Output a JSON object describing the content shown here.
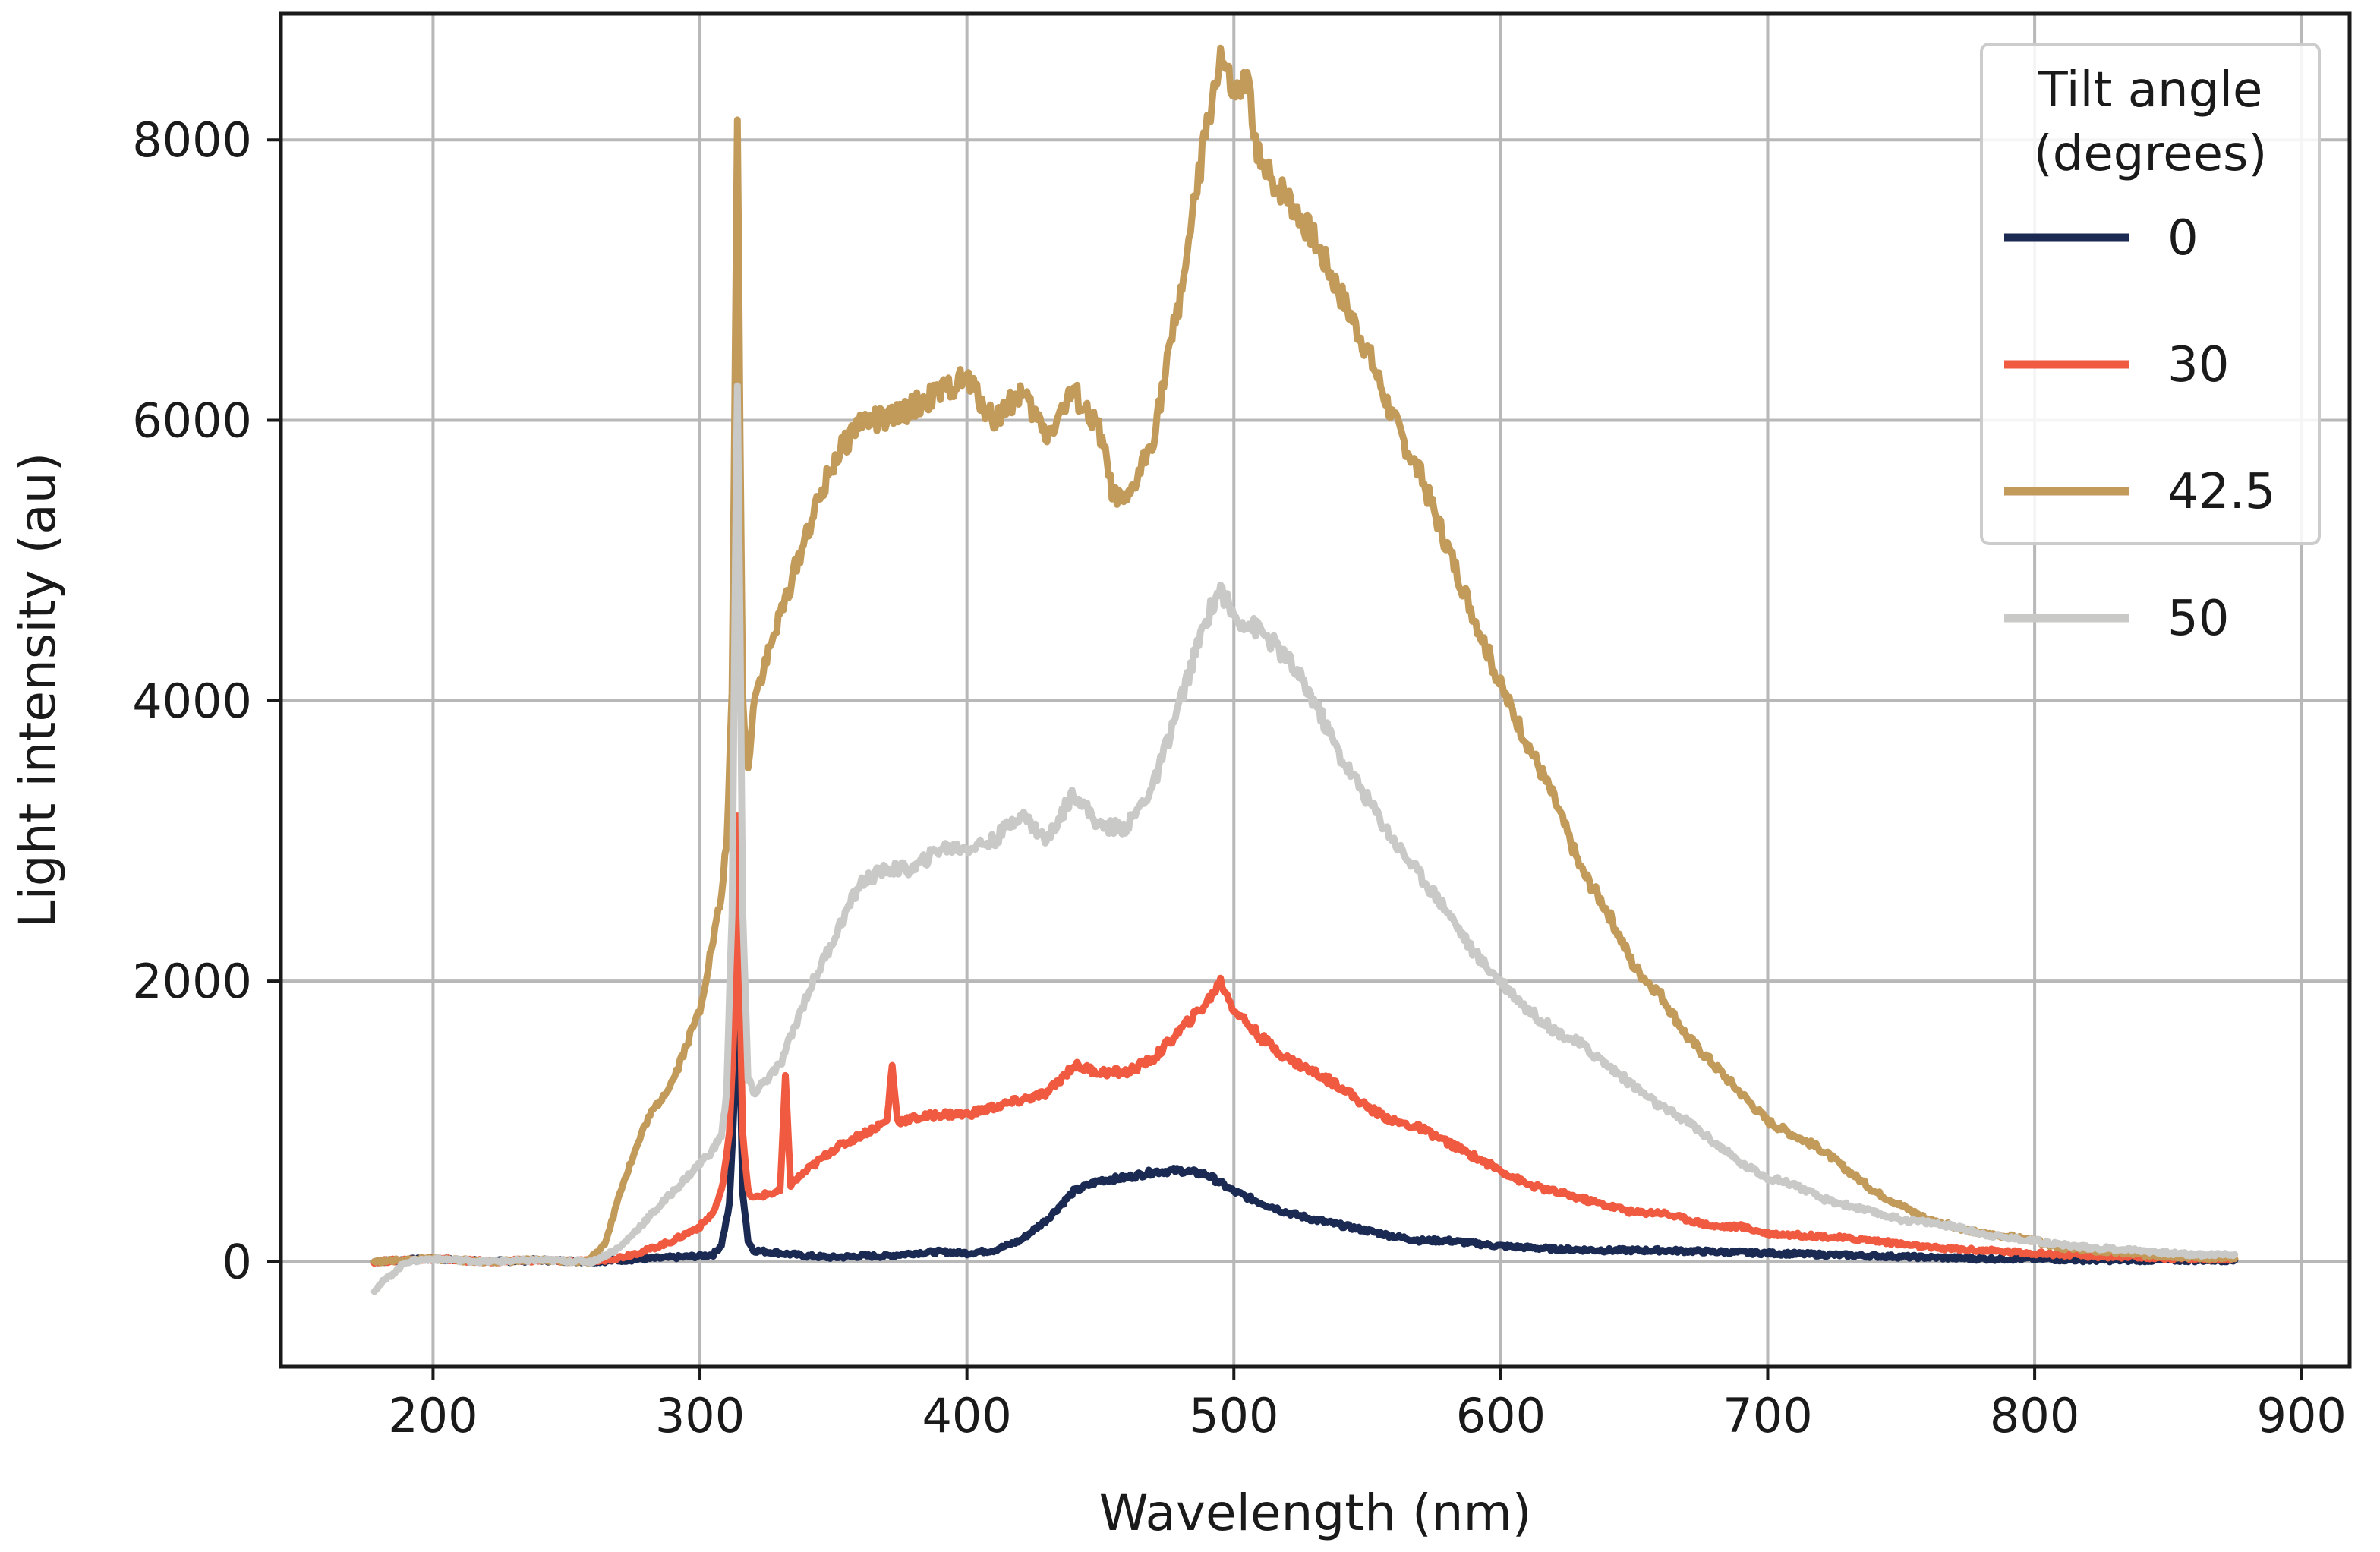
{
  "chart_data": {
    "type": "line",
    "xlabel": "Wavelength (nm)",
    "ylabel": "Light intensity (au)",
    "xlim": [
      143,
      918
    ],
    "ylim": [
      -750,
      8900
    ],
    "xticks": [
      200,
      300,
      400,
      500,
      600,
      700,
      800,
      900
    ],
    "yticks": [
      0,
      2000,
      4000,
      6000,
      8000
    ],
    "grid": true,
    "legend": {
      "title_lines": [
        "Tilt angle",
        "(degrees)"
      ],
      "placement": "top-right"
    },
    "series": [
      {
        "name": "0",
        "color": "#1b2a52",
        "points": [
          [
            178,
            0
          ],
          [
            200,
            20
          ],
          [
            220,
            0
          ],
          [
            240,
            10
          ],
          [
            260,
            0
          ],
          [
            270,
            10
          ],
          [
            280,
            20
          ],
          [
            290,
            30
          ],
          [
            300,
            40
          ],
          [
            305,
            50
          ],
          [
            308,
            120
          ],
          [
            311,
            400
          ],
          [
            313,
            1200
          ],
          [
            314,
            2600
          ],
          [
            315,
            1400
          ],
          [
            316,
            500
          ],
          [
            318,
            150
          ],
          [
            320,
            80
          ],
          [
            330,
            60
          ],
          [
            340,
            40
          ],
          [
            350,
            30
          ],
          [
            360,
            40
          ],
          [
            370,
            40
          ],
          [
            380,
            60
          ],
          [
            390,
            70
          ],
          [
            400,
            60
          ],
          [
            410,
            80
          ],
          [
            420,
            150
          ],
          [
            430,
            300
          ],
          [
            440,
            500
          ],
          [
            450,
            580
          ],
          [
            460,
            600
          ],
          [
            470,
            640
          ],
          [
            480,
            650
          ],
          [
            490,
            620
          ],
          [
            500,
            500
          ],
          [
            510,
            420
          ],
          [
            520,
            350
          ],
          [
            530,
            300
          ],
          [
            540,
            260
          ],
          [
            550,
            220
          ],
          [
            560,
            180
          ],
          [
            570,
            150
          ],
          [
            580,
            150
          ],
          [
            590,
            130
          ],
          [
            600,
            110
          ],
          [
            620,
            90
          ],
          [
            640,
            80
          ],
          [
            660,
            80
          ],
          [
            680,
            70
          ],
          [
            700,
            60
          ],
          [
            720,
            50
          ],
          [
            740,
            40
          ],
          [
            760,
            30
          ],
          [
            780,
            20
          ],
          [
            800,
            20
          ],
          [
            820,
            10
          ],
          [
            840,
            10
          ],
          [
            860,
            10
          ],
          [
            875,
            10
          ]
        ]
      },
      {
        "name": "30",
        "color": "#f05a40",
        "points": [
          [
            178,
            0
          ],
          [
            200,
            20
          ],
          [
            220,
            0
          ],
          [
            240,
            10
          ],
          [
            260,
            0
          ],
          [
            270,
            30
          ],
          [
            280,
            80
          ],
          [
            290,
            150
          ],
          [
            300,
            250
          ],
          [
            305,
            350
          ],
          [
            308,
            500
          ],
          [
            311,
            900
          ],
          [
            313,
            1800
          ],
          [
            314,
            3200
          ],
          [
            315,
            2000
          ],
          [
            316,
            900
          ],
          [
            318,
            500
          ],
          [
            320,
            450
          ],
          [
            325,
            480
          ],
          [
            330,
            500
          ],
          [
            332,
            1300
          ],
          [
            334,
            550
          ],
          [
            340,
            650
          ],
          [
            350,
            800
          ],
          [
            360,
            900
          ],
          [
            370,
            1000
          ],
          [
            372,
            1400
          ],
          [
            374,
            1000
          ],
          [
            380,
            1020
          ],
          [
            390,
            1050
          ],
          [
            400,
            1050
          ],
          [
            410,
            1100
          ],
          [
            420,
            1150
          ],
          [
            430,
            1200
          ],
          [
            440,
            1400
          ],
          [
            450,
            1350
          ],
          [
            460,
            1350
          ],
          [
            470,
            1450
          ],
          [
            480,
            1650
          ],
          [
            490,
            1850
          ],
          [
            495,
            2000
          ],
          [
            500,
            1800
          ],
          [
            510,
            1600
          ],
          [
            520,
            1450
          ],
          [
            530,
            1350
          ],
          [
            540,
            1250
          ],
          [
            550,
            1100
          ],
          [
            560,
            1000
          ],
          [
            570,
            950
          ],
          [
            580,
            850
          ],
          [
            590,
            750
          ],
          [
            600,
            650
          ],
          [
            610,
            550
          ],
          [
            620,
            500
          ],
          [
            630,
            450
          ],
          [
            640,
            400
          ],
          [
            650,
            350
          ],
          [
            660,
            350
          ],
          [
            670,
            300
          ],
          [
            680,
            250
          ],
          [
            690,
            250
          ],
          [
            700,
            200
          ],
          [
            720,
            180
          ],
          [
            740,
            150
          ],
          [
            760,
            100
          ],
          [
            780,
            80
          ],
          [
            800,
            60
          ],
          [
            820,
            40
          ],
          [
            840,
            30
          ],
          [
            860,
            20
          ],
          [
            875,
            20
          ]
        ]
      },
      {
        "name": "42.5",
        "color": "#c29a5a",
        "points": [
          [
            178,
            0
          ],
          [
            200,
            20
          ],
          [
            220,
            0
          ],
          [
            240,
            10
          ],
          [
            258,
            0
          ],
          [
            265,
            150
          ],
          [
            270,
            500
          ],
          [
            280,
            1000
          ],
          [
            290,
            1300
          ],
          [
            300,
            1800
          ],
          [
            305,
            2300
          ],
          [
            308,
            2600
          ],
          [
            310,
            3000
          ],
          [
            312,
            4000
          ],
          [
            313,
            6000
          ],
          [
            314,
            8200
          ],
          [
            315,
            6000
          ],
          [
            316,
            4000
          ],
          [
            318,
            3500
          ],
          [
            320,
            4000
          ],
          [
            330,
            4600
          ],
          [
            340,
            5200
          ],
          [
            350,
            5700
          ],
          [
            360,
            6000
          ],
          [
            370,
            6000
          ],
          [
            380,
            6100
          ],
          [
            390,
            6200
          ],
          [
            400,
            6300
          ],
          [
            410,
            6000
          ],
          [
            420,
            6200
          ],
          [
            430,
            5900
          ],
          [
            440,
            6200
          ],
          [
            450,
            5900
          ],
          [
            455,
            5450
          ],
          [
            460,
            5400
          ],
          [
            470,
            5900
          ],
          [
            480,
            6900
          ],
          [
            490,
            8100
          ],
          [
            495,
            8600
          ],
          [
            500,
            8300
          ],
          [
            505,
            8400
          ],
          [
            510,
            7800
          ],
          [
            520,
            7600
          ],
          [
            530,
            7300
          ],
          [
            540,
            6900
          ],
          [
            550,
            6500
          ],
          [
            560,
            6000
          ],
          [
            570,
            5600
          ],
          [
            580,
            5100
          ],
          [
            590,
            4600
          ],
          [
            600,
            4100
          ],
          [
            610,
            3700
          ],
          [
            620,
            3300
          ],
          [
            630,
            2800
          ],
          [
            640,
            2500
          ],
          [
            650,
            2100
          ],
          [
            660,
            1900
          ],
          [
            670,
            1600
          ],
          [
            680,
            1400
          ],
          [
            690,
            1200
          ],
          [
            700,
            1000
          ],
          [
            710,
            900
          ],
          [
            720,
            800
          ],
          [
            730,
            650
          ],
          [
            740,
            500
          ],
          [
            750,
            400
          ],
          [
            760,
            300
          ],
          [
            770,
            250
          ],
          [
            780,
            200
          ],
          [
            790,
            180
          ],
          [
            800,
            150
          ],
          [
            810,
            100
          ],
          [
            820,
            80
          ],
          [
            840,
            50
          ],
          [
            860,
            30
          ],
          [
            875,
            20
          ]
        ]
      },
      {
        "name": "50",
        "color": "#c9c9c7",
        "points": [
          [
            178,
            -200
          ],
          [
            190,
            0
          ],
          [
            200,
            20
          ],
          [
            220,
            0
          ],
          [
            240,
            10
          ],
          [
            260,
            0
          ],
          [
            270,
            100
          ],
          [
            280,
            300
          ],
          [
            290,
            500
          ],
          [
            300,
            700
          ],
          [
            305,
            800
          ],
          [
            308,
            900
          ],
          [
            310,
            1200
          ],
          [
            312,
            2500
          ],
          [
            313,
            4500
          ],
          [
            314,
            6300
          ],
          [
            315,
            4500
          ],
          [
            316,
            2500
          ],
          [
            318,
            1300
          ],
          [
            320,
            1200
          ],
          [
            330,
            1400
          ],
          [
            340,
            1900
          ],
          [
            350,
            2300
          ],
          [
            360,
            2700
          ],
          [
            370,
            2800
          ],
          [
            380,
            2800
          ],
          [
            390,
            2950
          ],
          [
            400,
            2950
          ],
          [
            410,
            3000
          ],
          [
            420,
            3200
          ],
          [
            430,
            3000
          ],
          [
            440,
            3350
          ],
          [
            450,
            3100
          ],
          [
            460,
            3100
          ],
          [
            470,
            3400
          ],
          [
            480,
            4000
          ],
          [
            490,
            4600
          ],
          [
            495,
            4800
          ],
          [
            500,
            4600
          ],
          [
            510,
            4500
          ],
          [
            520,
            4300
          ],
          [
            530,
            4000
          ],
          [
            540,
            3600
          ],
          [
            550,
            3300
          ],
          [
            560,
            3000
          ],
          [
            570,
            2750
          ],
          [
            580,
            2500
          ],
          [
            590,
            2200
          ],
          [
            600,
            2000
          ],
          [
            610,
            1800
          ],
          [
            620,
            1650
          ],
          [
            630,
            1550
          ],
          [
            640,
            1400
          ],
          [
            650,
            1250
          ],
          [
            660,
            1100
          ],
          [
            670,
            1000
          ],
          [
            680,
            850
          ],
          [
            690,
            700
          ],
          [
            700,
            600
          ],
          [
            710,
            550
          ],
          [
            720,
            450
          ],
          [
            730,
            400
          ],
          [
            740,
            350
          ],
          [
            750,
            300
          ],
          [
            760,
            280
          ],
          [
            770,
            250
          ],
          [
            780,
            200
          ],
          [
            790,
            170
          ],
          [
            800,
            150
          ],
          [
            810,
            120
          ],
          [
            820,
            100
          ],
          [
            830,
            90
          ],
          [
            840,
            80
          ],
          [
            850,
            60
          ],
          [
            860,
            50
          ],
          [
            875,
            50
          ]
        ]
      }
    ]
  }
}
